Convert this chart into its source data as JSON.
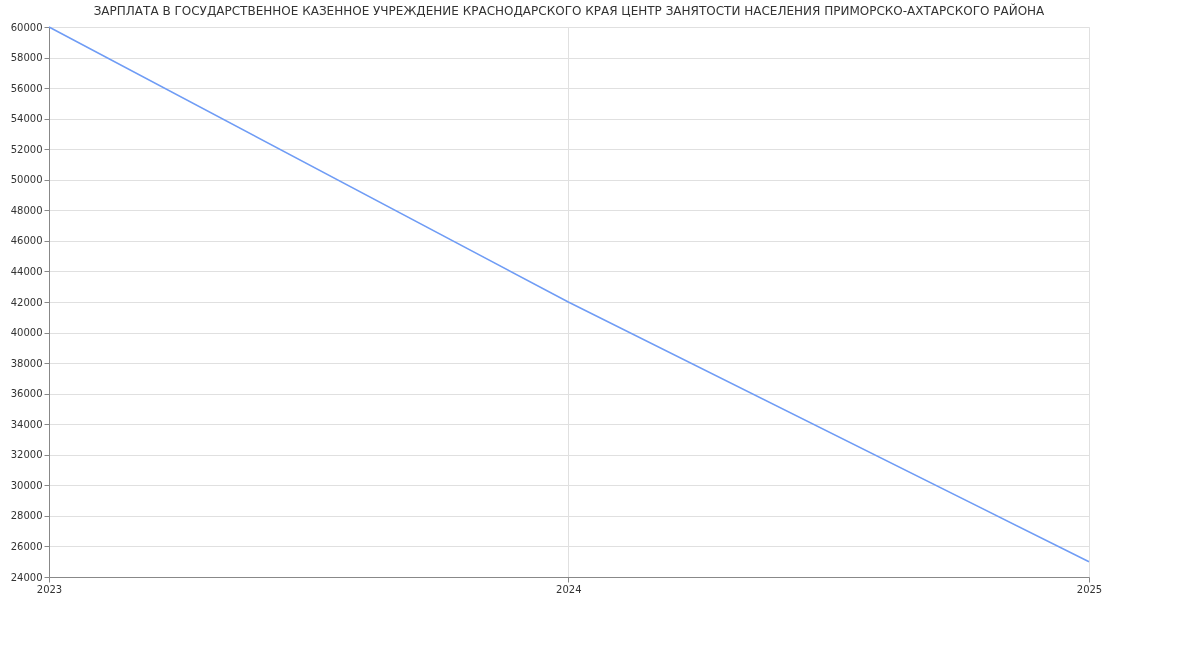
{
  "chart_data": {
    "type": "line",
    "title": "ЗАРПЛАТА В ГОСУДАРСТВЕННОЕ КАЗЕННОЕ УЧРЕЖДЕНИЕ КРАСНОДАРСКОГО КРАЯ ЦЕНТР ЗАНЯТОСТИ НАСЕЛЕНИЯ ПРИМОРСКО-АХТАРСКОГО РАЙОНА",
    "x": [
      "2023",
      "2024",
      "2025"
    ],
    "series": [
      {
        "color": "#6f9cf5",
        "values": [
          60000,
          42000,
          25000
        ]
      }
    ],
    "xlim": [
      "2023",
      "2025"
    ],
    "xticks": [
      "2023",
      "2024",
      "2025"
    ],
    "ylim": [
      24000,
      60000
    ],
    "yticks": [
      24000,
      26000,
      28000,
      30000,
      32000,
      34000,
      36000,
      38000,
      40000,
      42000,
      44000,
      46000,
      48000,
      50000,
      52000,
      54000,
      56000,
      58000,
      60000
    ],
    "grid": true,
    "marker": "none",
    "line_style": "solid",
    "legend": false
  }
}
